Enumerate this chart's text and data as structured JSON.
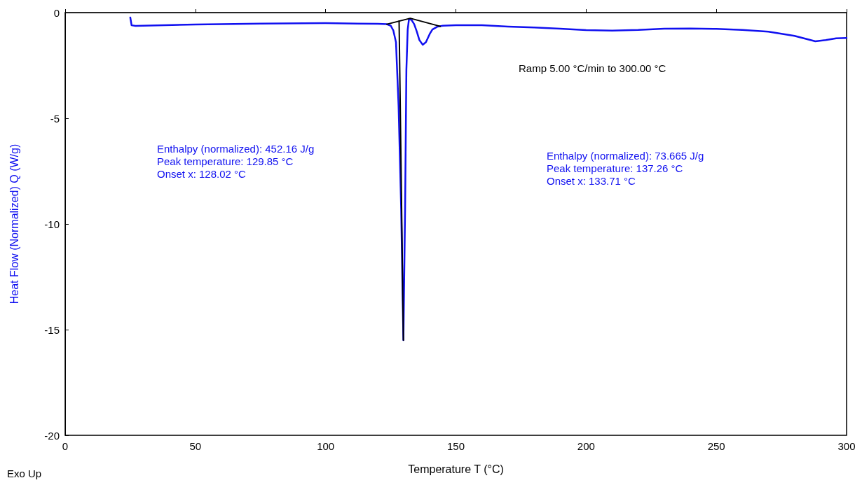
{
  "chart_data": {
    "type": "line",
    "xlabel": "Temperature T (°C)",
    "ylabel": "Heat Flow (Normalized) Q (W/g)",
    "xlim": [
      0,
      300
    ],
    "xticks": [
      0,
      50,
      100,
      150,
      200,
      250,
      300
    ],
    "ylim": [
      -20,
      0
    ],
    "yticks": [
      -20,
      -15,
      -10,
      -5,
      0
    ],
    "grid": false,
    "marker": "none",
    "line_style": "solid",
    "series": [
      {
        "color": "#1010f0",
        "x": [
          25,
          25.5,
          27,
          50,
          75,
          100,
          120,
          123.5,
          125,
          126,
          127,
          128,
          129,
          129.85,
          130.5,
          131,
          131.5,
          132,
          133,
          134,
          135,
          136,
          137.26,
          138.5,
          140,
          141,
          143,
          145,
          150,
          160,
          170,
          180,
          190,
          200,
          210,
          220,
          230,
          240,
          250,
          260,
          270,
          280,
          288,
          292,
          296,
          300
        ],
        "values": [
          -0.23,
          -0.6,
          -0.63,
          -0.56,
          -0.52,
          -0.5,
          -0.53,
          -0.55,
          -0.62,
          -0.85,
          -1.4,
          -4.4,
          -9.3,
          -15.5,
          -9.3,
          -2.7,
          -0.8,
          -0.3,
          -0.35,
          -0.55,
          -0.9,
          -1.3,
          -1.52,
          -1.4,
          -1.0,
          -0.8,
          -0.66,
          -0.62,
          -0.6,
          -0.6,
          -0.66,
          -0.7,
          -0.76,
          -0.83,
          -0.85,
          -0.82,
          -0.76,
          -0.75,
          -0.77,
          -0.82,
          -0.9,
          -1.1,
          -1.36,
          -1.3,
          -1.22,
          -1.2
        ]
      },
      {
        "color": "#000000",
        "x": [
          123.5,
          132.5,
          144
        ],
        "values": [
          -0.55,
          -0.27,
          -0.65
        ]
      },
      {
        "color": "#000000",
        "x": [
          128.2,
          129.85
        ],
        "values": [
          -0.4,
          -15.5
        ]
      }
    ],
    "annotations": [
      "Ramp 5.00 °C/min to 300.00 °C",
      "Enthalpy (normalized): 452.16 J/g\nPeak temperature: 129.85 °C\nOnset x: 128.02 °C",
      "Enthalpy (normalized): 73.665 J/g\nPeak temperature: 137.26 °C\nOnset x: 133.71 °C",
      "Exo Up"
    ]
  }
}
